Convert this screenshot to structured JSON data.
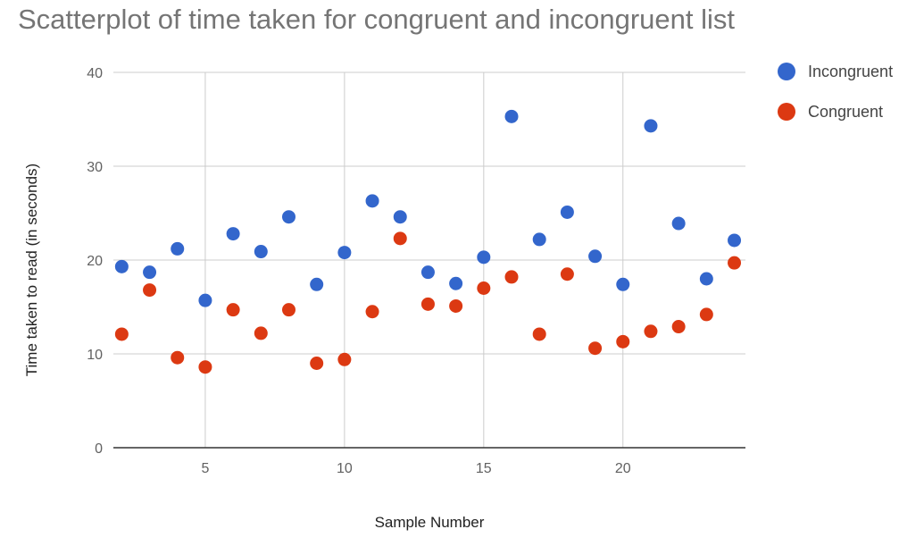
{
  "chart_data": {
    "type": "scatter",
    "title": "Scatterplot of time taken for congruent and incongruent list",
    "xlabel": "Sample Number",
    "ylabel": "Time taken to read (in seconds)",
    "xlim": [
      1.7,
      24.4
    ],
    "ylim": [
      0,
      40
    ],
    "xticks": [
      5,
      10,
      15,
      20
    ],
    "yticks": [
      0,
      10,
      20,
      30,
      40
    ],
    "grid": true,
    "legend_position": "right",
    "series": [
      {
        "name": "Incongruent",
        "color": "#3366cc",
        "points": [
          [
            2,
            19.3
          ],
          [
            3,
            18.7
          ],
          [
            4,
            21.2
          ],
          [
            5,
            15.7
          ],
          [
            6,
            22.8
          ],
          [
            7,
            20.9
          ],
          [
            8,
            24.6
          ],
          [
            9,
            17.4
          ],
          [
            10,
            20.8
          ],
          [
            11,
            26.3
          ],
          [
            12,
            24.6
          ],
          [
            13,
            18.7
          ],
          [
            14,
            17.5
          ],
          [
            15,
            20.3
          ],
          [
            16,
            35.3
          ],
          [
            17,
            22.2
          ],
          [
            18,
            25.1
          ],
          [
            19,
            20.4
          ],
          [
            20,
            17.4
          ],
          [
            21,
            34.3
          ],
          [
            22,
            23.9
          ],
          [
            23,
            18.0
          ],
          [
            24,
            22.1
          ]
        ]
      },
      {
        "name": "Congruent",
        "color": "#dc3912",
        "points": [
          [
            2,
            12.1
          ],
          [
            3,
            16.8
          ],
          [
            4,
            9.6
          ],
          [
            5,
            8.6
          ],
          [
            6,
            14.7
          ],
          [
            7,
            12.2
          ],
          [
            8,
            14.7
          ],
          [
            9,
            9.0
          ],
          [
            10,
            9.4
          ],
          [
            11,
            14.5
          ],
          [
            12,
            22.3
          ],
          [
            13,
            15.3
          ],
          [
            14,
            15.1
          ],
          [
            15,
            17.0
          ],
          [
            16,
            18.2
          ],
          [
            17,
            12.1
          ],
          [
            18,
            18.5
          ],
          [
            19,
            10.6
          ],
          [
            20,
            11.3
          ],
          [
            21,
            12.4
          ],
          [
            22,
            12.9
          ],
          [
            23,
            14.2
          ],
          [
            24,
            19.7
          ]
        ]
      }
    ]
  }
}
